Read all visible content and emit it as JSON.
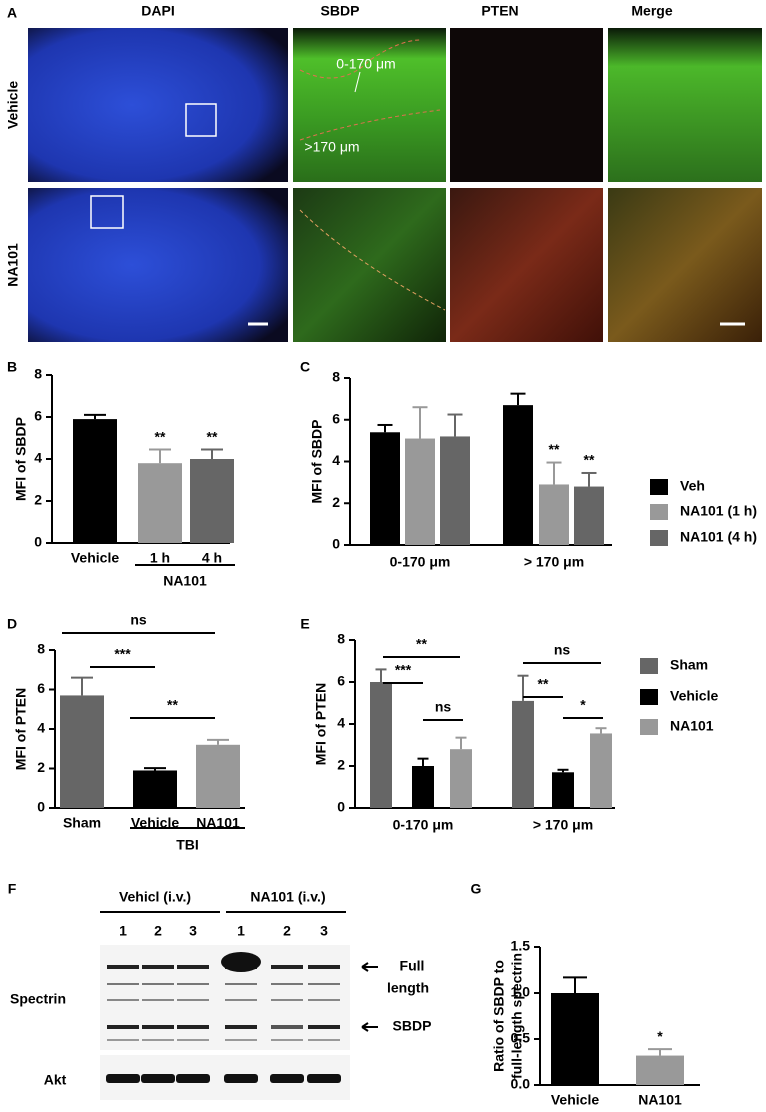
{
  "panel_labels": [
    "A",
    "B",
    "C",
    "D",
    "E",
    "F",
    "G"
  ],
  "microscopy": {
    "columns": [
      "DAPI",
      "SBDP",
      "PTEN",
      "Merge"
    ],
    "rows": [
      "Vehicle",
      "NA101"
    ],
    "annotations": [
      "0-170 μm",
      ">170 μm"
    ]
  },
  "blot": {
    "groups": [
      "Vehicl (i.v.)",
      "NA101 (i.v.)"
    ],
    "lanes": [
      "1",
      "2",
      "3",
      "1",
      "2",
      "3"
    ],
    "rows": [
      "Spectrin",
      "Akt"
    ],
    "markers": [
      [
        "Full",
        "length"
      ],
      "SBDP"
    ]
  },
  "chart_data": [
    {
      "type": "bar",
      "ylabel": "MFI of SBDP",
      "categories": [
        "Vehicle",
        "1 h",
        "4 h"
      ],
      "values": [
        5.9,
        3.8,
        4.0
      ],
      "errors": [
        0.2,
        0.65,
        0.45
      ],
      "colors": [
        "#000000",
        "#999999",
        "#666666"
      ],
      "ylim": [
        0,
        8
      ],
      "yticks": [
        0,
        2,
        4,
        6,
        8
      ],
      "group_label": "NA101",
      "annotations": [
        "**",
        "**"
      ]
    },
    {
      "type": "grouped_bar",
      "ylabel": "MFI of SBDP",
      "categories": [
        "0-170 μm",
        "> 170 μm"
      ],
      "series": [
        {
          "name": "Veh",
          "color": "#000000",
          "values": [
            5.4,
            6.7
          ],
          "errors": [
            0.35,
            0.55
          ]
        },
        {
          "name": "NA101 (1 h)",
          "color": "#999999",
          "values": [
            5.1,
            2.9
          ],
          "errors": [
            1.5,
            1.05
          ]
        },
        {
          "name": "NA101 (4 h)",
          "color": "#666666",
          "values": [
            5.2,
            2.8
          ],
          "errors": [
            1.05,
            0.65
          ]
        }
      ],
      "ylim": [
        0,
        8
      ],
      "yticks": [
        0,
        2,
        4,
        6,
        8
      ],
      "annotations": [
        "**",
        "**"
      ]
    },
    {
      "type": "bar",
      "ylabel": "MFI of PTEN",
      "categories": [
        "Sham",
        "Vehicle",
        "NA101"
      ],
      "values": [
        5.7,
        1.9,
        3.2
      ],
      "errors": [
        0.9,
        0.12,
        0.25
      ],
      "colors": [
        "#666666",
        "#000000",
        "#999999"
      ],
      "ylim": [
        0,
        8
      ],
      "yticks": [
        0,
        2,
        4,
        6,
        8
      ],
      "group_label": "TBI",
      "annotations": [
        "ns",
        "***",
        "**"
      ]
    },
    {
      "type": "grouped_bar",
      "ylabel": "MFI of PTEN",
      "categories": [
        "0-170 μm",
        "> 170 μm"
      ],
      "series": [
        {
          "name": "Sham",
          "color": "#666666",
          "values": [
            6.0,
            5.1
          ],
          "errors": [
            0.6,
            1.2
          ]
        },
        {
          "name": "Vehicle",
          "color": "#000000",
          "values": [
            2.0,
            1.7
          ],
          "errors": [
            0.35,
            0.12
          ]
        },
        {
          "name": "NA101",
          "color": "#999999",
          "values": [
            2.8,
            3.55
          ],
          "errors": [
            0.55,
            0.25
          ]
        }
      ],
      "ylim": [
        0,
        8
      ],
      "yticks": [
        0,
        2,
        4,
        6,
        8
      ],
      "annotations": [
        "**",
        "***",
        "ns",
        "ns",
        "**",
        "*"
      ]
    },
    {
      "type": "bar",
      "ylabel": [
        "Ratio of SBDP to",
        "full-length spectrin"
      ],
      "categories": [
        "Vehicle",
        "NA101"
      ],
      "values": [
        1.0,
        0.32
      ],
      "errors": [
        0.17,
        0.07
      ],
      "colors": [
        "#000000",
        "#999999"
      ],
      "ylim": [
        0,
        1.5
      ],
      "yticks": [
        {
          "value": 0,
          "label": "0.0"
        },
        0.5,
        {
          "value": 1,
          "label": "1.0"
        },
        1.5
      ],
      "annotations": [
        "*"
      ]
    }
  ]
}
